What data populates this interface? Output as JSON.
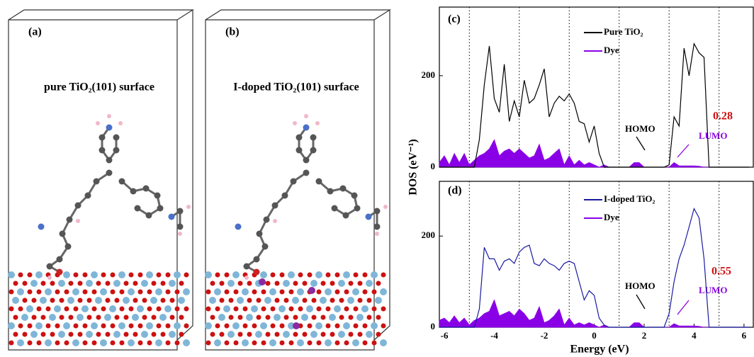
{
  "panels": [
    {
      "label": "(a)",
      "caption": "pure TiO₂(101) surface"
    },
    {
      "label": "(b)",
      "caption": "I-doped TiO₂(101) surface"
    }
  ],
  "chart_data": [
    {
      "type": "line",
      "panel_label": "(c)",
      "y_label": "DOS (eV⁻¹)",
      "x": [
        -6.2,
        -6.0,
        -5.8,
        -5.6,
        -5.4,
        -5.2,
        -5.0,
        -4.8,
        -4.6,
        -4.4,
        -4.2,
        -4.0,
        -3.8,
        -3.6,
        -3.4,
        -3.2,
        -3.0,
        -2.8,
        -2.6,
        -2.4,
        -2.2,
        -2.0,
        -1.8,
        -1.6,
        -1.4,
        -1.2,
        -1.0,
        -0.8,
        -0.6,
        -0.4,
        -0.2,
        0.0,
        0.2,
        0.4,
        0.6,
        0.8,
        1.0,
        1.2,
        1.4,
        1.6,
        1.8,
        2.0,
        2.2,
        2.4,
        2.6,
        2.8,
        3.0,
        3.2,
        3.4,
        3.6,
        3.8,
        4.0,
        4.2,
        4.4,
        4.6,
        4.8,
        5.0,
        5.2,
        5.4,
        5.6,
        5.8,
        6.0,
        6.2
      ],
      "series": [
        {
          "name": "Pure TiO₂",
          "color": "#000000",
          "filled": false,
          "values": [
            0,
            0,
            0,
            0,
            0,
            0,
            0,
            0,
            60,
            180,
            265,
            150,
            120,
            225,
            100,
            145,
            110,
            190,
            140,
            150,
            180,
            215,
            110,
            140,
            155,
            145,
            160,
            140,
            100,
            95,
            55,
            90,
            30,
            0,
            0,
            0,
            0,
            0,
            0,
            0,
            0,
            0,
            0,
            0,
            0,
            0,
            5,
            110,
            90,
            260,
            200,
            270,
            250,
            240,
            0,
            0,
            0,
            0,
            0,
            0,
            0,
            0,
            0
          ]
        },
        {
          "name": "Dye",
          "color": "#8a00e6",
          "filled": true,
          "values": [
            10,
            25,
            5,
            30,
            10,
            30,
            5,
            15,
            25,
            30,
            40,
            60,
            25,
            35,
            40,
            30,
            40,
            30,
            20,
            25,
            50,
            15,
            20,
            30,
            40,
            5,
            25,
            5,
            15,
            5,
            10,
            5,
            0,
            5,
            0,
            0,
            0,
            0,
            0,
            10,
            10,
            0,
            0,
            0,
            0,
            0,
            0,
            10,
            3,
            3,
            3,
            3,
            2,
            0,
            0,
            0,
            0,
            0,
            0,
            0,
            0,
            0,
            0
          ]
        }
      ],
      "xlim": [
        -6.2,
        6.4
      ],
      "ylim": [
        0,
        350
      ],
      "yticks": [
        0,
        200
      ],
      "vlines": [
        -5,
        -3,
        -1,
        1,
        3,
        5
      ],
      "annotations": [
        "HOMO",
        "LUMO",
        "0.28"
      ]
    },
    {
      "type": "line",
      "panel_label": "(d)",
      "x_label": "Energy (eV)",
      "x": [
        -6.2,
        -6.0,
        -5.8,
        -5.6,
        -5.4,
        -5.2,
        -5.0,
        -4.8,
        -4.6,
        -4.4,
        -4.2,
        -4.0,
        -3.8,
        -3.6,
        -3.4,
        -3.2,
        -3.0,
        -2.8,
        -2.6,
        -2.4,
        -2.2,
        -2.0,
        -1.8,
        -1.6,
        -1.4,
        -1.2,
        -1.0,
        -0.8,
        -0.6,
        -0.4,
        -0.2,
        0.0,
        0.2,
        0.4,
        0.6,
        0.8,
        1.0,
        1.2,
        1.4,
        1.6,
        1.8,
        2.0,
        2.2,
        2.4,
        2.6,
        2.8,
        3.0,
        3.2,
        3.4,
        3.6,
        3.8,
        4.0,
        4.2,
        4.4,
        4.6,
        4.8,
        5.0,
        5.2,
        5.4,
        5.6,
        5.8,
        6.0,
        6.2
      ],
      "series": [
        {
          "name": "I-doped TiO₂",
          "color": "#1a1aa0",
          "filled": false,
          "values": [
            0,
            0,
            0,
            0,
            0,
            0,
            0,
            0,
            40,
            175,
            150,
            150,
            125,
            145,
            150,
            140,
            165,
            175,
            180,
            140,
            135,
            150,
            140,
            135,
            125,
            140,
            145,
            140,
            100,
            60,
            80,
            70,
            20,
            5,
            0,
            0,
            0,
            0,
            0,
            0,
            0,
            0,
            0,
            0,
            0,
            0,
            30,
            100,
            150,
            180,
            220,
            260,
            240,
            150,
            0,
            0,
            0,
            0,
            0,
            0,
            0,
            0,
            0
          ]
        },
        {
          "name": "Dye",
          "color": "#8a00e6",
          "filled": true,
          "values": [
            15,
            20,
            10,
            25,
            10,
            20,
            5,
            15,
            20,
            30,
            35,
            60,
            25,
            30,
            35,
            25,
            40,
            30,
            15,
            20,
            45,
            10,
            15,
            25,
            40,
            5,
            20,
            5,
            10,
            5,
            10,
            5,
            0,
            5,
            0,
            0,
            0,
            0,
            0,
            10,
            10,
            0,
            0,
            0,
            0,
            0,
            0,
            8,
            3,
            3,
            3,
            3,
            2,
            0,
            0,
            0,
            0,
            0,
            0,
            0,
            0,
            0,
            0
          ]
        }
      ],
      "xlim": [
        -6.2,
        6.4
      ],
      "xticks": [
        -6,
        -4,
        -2,
        0,
        2,
        4,
        6
      ],
      "ylim": [
        0,
        320
      ],
      "yticks": [
        0,
        200
      ],
      "vlines": [
        -5,
        -3,
        -1,
        1,
        3,
        5
      ],
      "annotations": [
        "HOMO",
        "LUMO",
        "0.55"
      ]
    }
  ]
}
